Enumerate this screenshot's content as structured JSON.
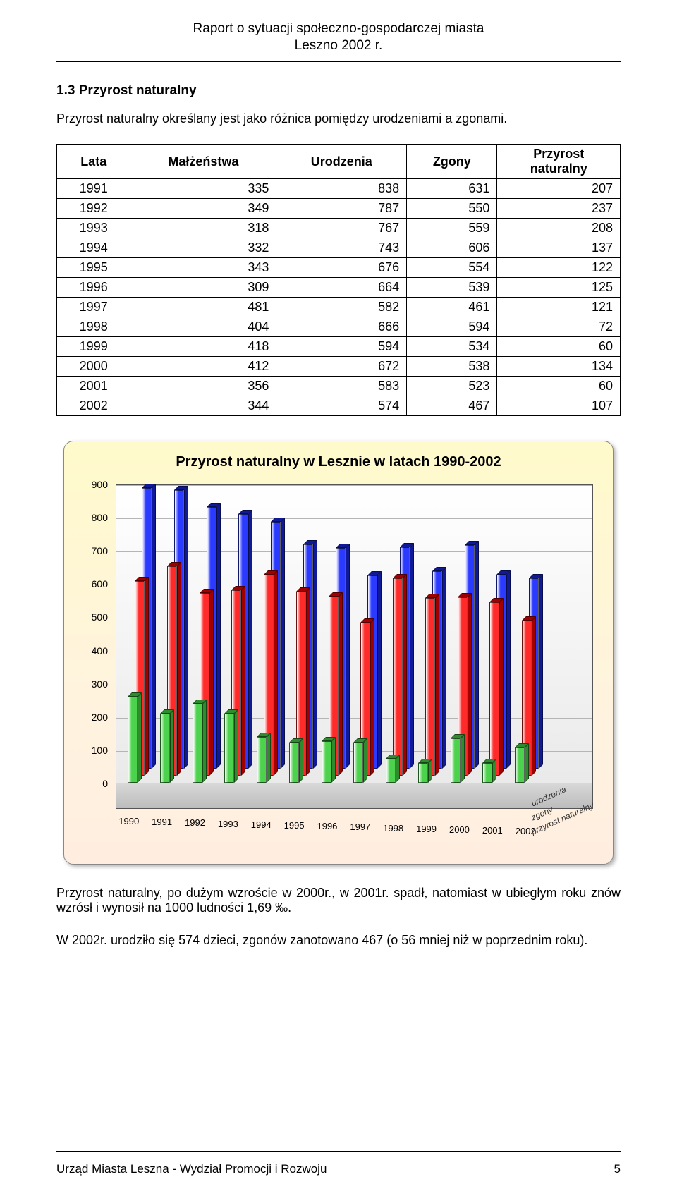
{
  "header": {
    "title": "Raport o sytuacji społeczno-gospodarczej miasta",
    "subtitle": "Leszno 2002 r."
  },
  "section": {
    "title": "1.3 Przyrost  naturalny",
    "intro": "Przyrost naturalny określany jest jako różnica pomiędzy urodzeniami a zgonami."
  },
  "table": {
    "columns": [
      "Lata",
      "Małżeństwa",
      "Urodzenia",
      "Zgony",
      "Przyrost naturalny"
    ],
    "rows": [
      [
        "1991",
        335,
        838,
        631,
        207
      ],
      [
        "1992",
        349,
        787,
        550,
        237
      ],
      [
        "1993",
        318,
        767,
        559,
        208
      ],
      [
        "1994",
        332,
        743,
        606,
        137
      ],
      [
        "1995",
        343,
        676,
        554,
        122
      ],
      [
        "1996",
        309,
        664,
        539,
        125
      ],
      [
        "1997",
        481,
        582,
        461,
        121
      ],
      [
        "1998",
        404,
        666,
        594,
        72
      ],
      [
        "1999",
        418,
        594,
        534,
        60
      ],
      [
        "2000",
        412,
        672,
        538,
        134
      ],
      [
        "2001",
        356,
        583,
        523,
        60
      ],
      [
        "2002",
        344,
        574,
        467,
        107
      ]
    ]
  },
  "chart": {
    "title": "Przyrost naturalny w Lesznie w latach 1990-2002",
    "type": "bar3d-grouped",
    "ylim": [
      0,
      900
    ],
    "ytick_step": 100,
    "yticks": [
      0,
      100,
      200,
      300,
      400,
      500,
      600,
      700,
      800,
      900
    ],
    "categories": [
      "1990",
      "1991",
      "1992",
      "1993",
      "1994",
      "1995",
      "1996",
      "1997",
      "1998",
      "1999",
      "2000",
      "2001",
      "2002"
    ],
    "series": [
      {
        "name": "przyrost naturalny",
        "color": "#4dd24d",
        "dark": "#2e8b2e",
        "values": [
          260,
          207,
          237,
          208,
          137,
          122,
          125,
          121,
          72,
          60,
          134,
          60,
          107
        ]
      },
      {
        "name": "zgony",
        "color": "#ff2a2a",
        "dark": "#a00000",
        "values": [
          585,
          631,
          550,
          559,
          606,
          554,
          539,
          461,
          594,
          534,
          538,
          523,
          467
        ]
      },
      {
        "name": "urodzenia",
        "color": "#2a3aff",
        "dark": "#101a99",
        "values": [
          845,
          838,
          787,
          767,
          743,
          676,
          664,
          582,
          666,
          594,
          672,
          583,
          574
        ]
      }
    ],
    "background": "#fff3de",
    "plot_bg": "#f0f0f0",
    "grid_color": "#b5b5b5",
    "title_fontsize": 20,
    "tick_fontsize": 14
  },
  "body_after": {
    "p1": "Przyrost naturalny, po dużym wzroście w 2000r., w 2001r. spadł, natomiast w ubiegłym roku znów wzrósł i wynosił na 1000 ludności 1,69 ‰.",
    "p2": "W  2002r.  urodziło się  574 dzieci, zgonów zanotowano 467 (o 56 mniej niż w poprzednim roku)."
  },
  "footer": {
    "text": "Urząd Miasta Leszna - Wydział Promocji i Rozwoju",
    "page": "5"
  }
}
